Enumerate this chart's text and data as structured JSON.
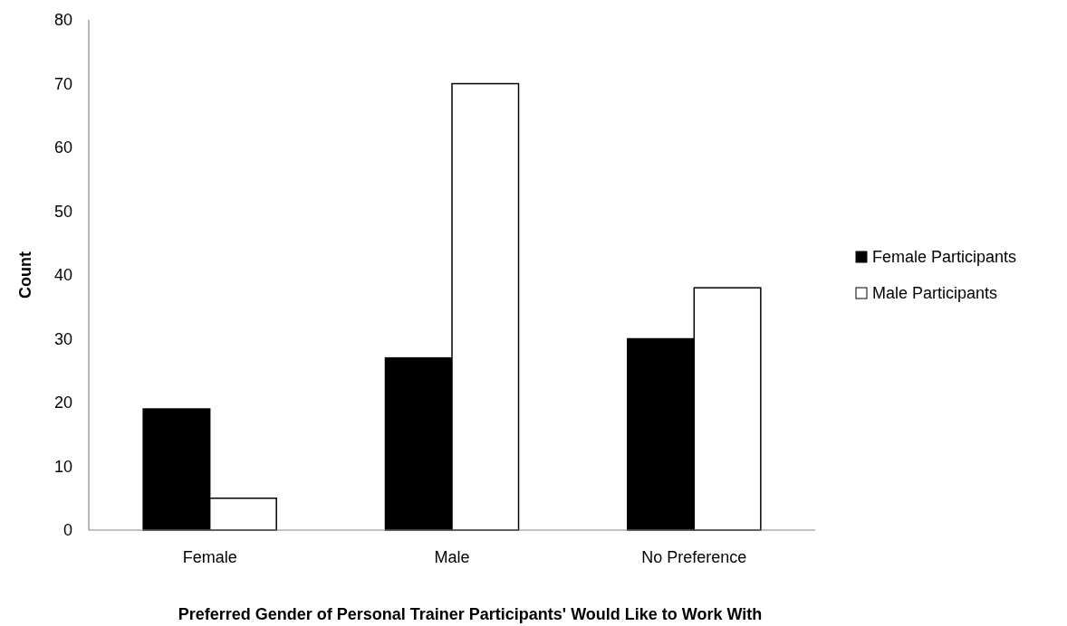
{
  "chart_data": {
    "type": "bar",
    "xlabel": "Preferred Gender of Personal Trainer Participants' Would Like to Work With",
    "ylabel": "Count",
    "categories": [
      "Female",
      "Male",
      "No Preference"
    ],
    "series": [
      {
        "name": "Female Participants",
        "color": "#000000",
        "values": [
          19,
          27,
          30
        ]
      },
      {
        "name": "Male Participants",
        "color": "#ffffff",
        "values": [
          5,
          70,
          38
        ]
      }
    ],
    "ylim": [
      0,
      80
    ],
    "yticks": [
      0,
      10,
      20,
      30,
      40,
      50,
      60,
      70,
      80
    ],
    "grid": false,
    "legend": "right"
  }
}
